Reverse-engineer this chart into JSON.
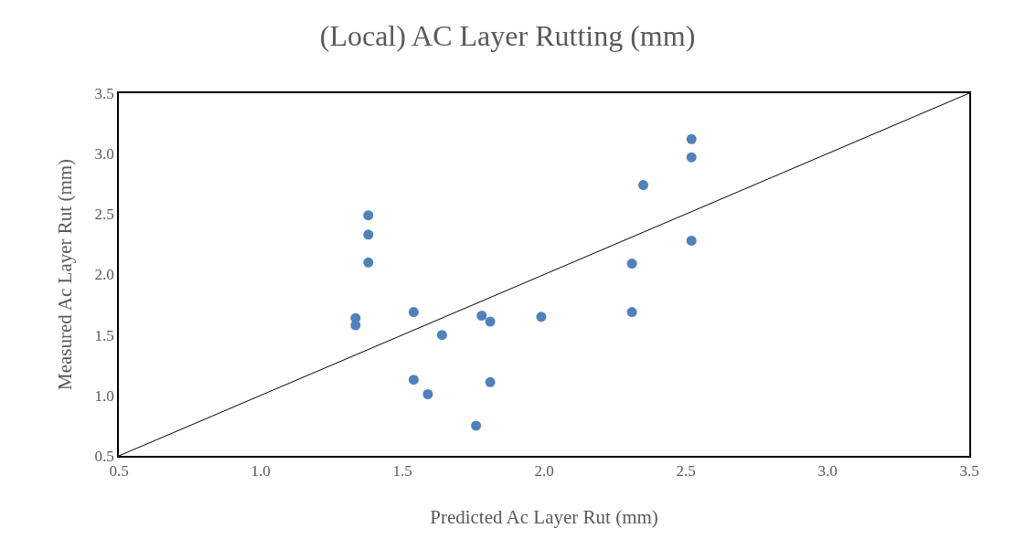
{
  "chart_data": {
    "type": "scatter",
    "title": "(Local) AC Layer Rutting (mm)",
    "xlabel": "Predicted Ac Layer Rut (mm)",
    "ylabel": "Measured Ac Layer Rut (mm)",
    "series": [
      {
        "color": "#4f81bd",
        "marker": "circle",
        "x": [
          1.335,
          1.335,
          1.38,
          1.38,
          1.38,
          1.54,
          1.54,
          1.59,
          1.64,
          1.76,
          1.78,
          1.81,
          1.81,
          1.99,
          2.31,
          2.31,
          2.35,
          2.52,
          2.52,
          2.52
        ],
        "values": [
          1.58,
          1.64,
          2.49,
          2.33,
          2.1,
          1.69,
          1.13,
          1.01,
          1.5,
          0.75,
          1.66,
          1.61,
          1.11,
          1.65,
          2.09,
          1.69,
          2.74,
          3.12,
          2.97,
          2.28
        ]
      },
      {
        "type": "line",
        "color": "#000000",
        "marker": "none",
        "line_style": "solid",
        "x": [
          0.5,
          3.5
        ],
        "values": [
          0.5,
          3.5
        ]
      }
    ],
    "xlim": [
      0.5,
      3.5
    ],
    "ylim": [
      0.5,
      3.5
    ],
    "xticks": [
      {
        "value": 0.5,
        "label": "0.5"
      },
      {
        "value": 1,
        "label": "1.0"
      },
      {
        "value": 1.5,
        "label": "1.5"
      },
      {
        "value": 2,
        "label": "2.0"
      },
      {
        "value": 2.5,
        "label": "2.5"
      },
      {
        "value": 3,
        "label": "3.0"
      },
      {
        "value": 3.5,
        "label": "3.5"
      }
    ],
    "yticks": [
      {
        "value": 0.5,
        "label": "0.5"
      },
      {
        "value": 1,
        "label": "1.0"
      },
      {
        "value": 1.5,
        "label": "1.5"
      },
      {
        "value": 2,
        "label": "2.0"
      },
      {
        "value": 2.5,
        "label": "2.5"
      },
      {
        "value": 3,
        "label": "3.0"
      },
      {
        "value": 3.5,
        "label": "3.5"
      }
    ],
    "grid": false
  }
}
